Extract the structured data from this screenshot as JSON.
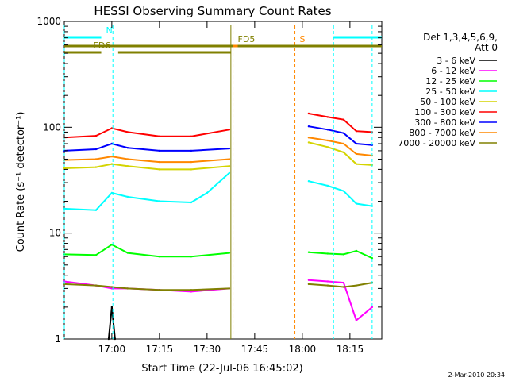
{
  "chart_data": {
    "type": "line",
    "title": "HESSI Observing Summary Count Rates",
    "xlabel": "Start Time (22-Jul-06 16:45:02)",
    "ylabel": "Count Rate (s⁻¹ detector⁻¹)",
    "ylim": [
      1,
      1000
    ],
    "y_scale": "log",
    "xlim": [
      "16:45:02",
      "18:25:02"
    ],
    "x_ticks": [
      "17:00",
      "17:15",
      "17:30",
      "17:45",
      "18:00",
      "18:15"
    ],
    "y_ticks": [
      "1",
      "10",
      "100",
      "1000"
    ],
    "legend_position": "right",
    "legend_title": [
      "Det 1,3,4,5,6,9,",
      "Att 0"
    ],
    "grid": false,
    "data_gaps": [
      [
        "17:38",
        "18:02"
      ]
    ],
    "series": [
      {
        "name": "3 - 6 keV",
        "color": "#000000",
        "x": [
          "16:59",
          "17:00",
          "17:01"
        ],
        "y": [
          1.0,
          2.0,
          1.0
        ]
      },
      {
        "name": "6 - 12 keV",
        "color": "#ff00ff",
        "x": [
          "16:45",
          "16:55",
          "17:00",
          "17:05",
          "17:15",
          "17:25",
          "17:37",
          "18:02",
          "18:08",
          "18:13",
          "18:17",
          "18:22"
        ],
        "y": [
          3.5,
          3.2,
          3.0,
          3.0,
          2.9,
          2.8,
          3.0,
          3.6,
          3.5,
          3.4,
          1.5,
          2.0
        ]
      },
      {
        "name": "12 - 25 keV",
        "color": "#00ff00",
        "x": [
          "16:45",
          "16:55",
          "17:00",
          "17:05",
          "17:15",
          "17:25",
          "17:37",
          "18:02",
          "18:08",
          "18:13",
          "18:17",
          "18:22"
        ],
        "y": [
          6.3,
          6.2,
          7.8,
          6.5,
          6.0,
          6.0,
          6.5,
          6.6,
          6.4,
          6.3,
          6.8,
          5.8
        ]
      },
      {
        "name": "25 - 50 keV",
        "color": "#00ffff",
        "x": [
          "16:45",
          "16:55",
          "17:00",
          "17:05",
          "17:15",
          "17:25",
          "17:30",
          "17:37",
          "18:02",
          "18:08",
          "18:13",
          "18:17",
          "18:22"
        ],
        "y": [
          17.0,
          16.5,
          24.0,
          22.0,
          20.0,
          19.5,
          24.0,
          37.0,
          31.0,
          28.0,
          25.0,
          19.0,
          18.0
        ]
      },
      {
        "name": "50 - 100 keV",
        "color": "#d4d400",
        "x": [
          "16:45",
          "16:55",
          "17:00",
          "17:05",
          "17:15",
          "17:25",
          "17:37",
          "18:02",
          "18:08",
          "18:13",
          "18:17",
          "18:22"
        ],
        "y": [
          41.0,
          42.0,
          45.0,
          43.0,
          40.0,
          40.0,
          43.0,
          72.0,
          65.0,
          58.0,
          45.0,
          44.0
        ]
      },
      {
        "name": "100 - 300 keV",
        "color": "#ff0000",
        "x": [
          "16:45",
          "16:55",
          "17:00",
          "17:05",
          "17:15",
          "17:25",
          "17:37",
          "18:02",
          "18:08",
          "18:13",
          "18:17",
          "18:22"
        ],
        "y": [
          80.0,
          83.0,
          98.0,
          90.0,
          82.0,
          82.0,
          95.0,
          135.0,
          125.0,
          118.0,
          92.0,
          90.0
        ]
      },
      {
        "name": "300 - 800 keV",
        "color": "#0000ff",
        "x": [
          "16:45",
          "16:55",
          "17:00",
          "17:05",
          "17:15",
          "17:25",
          "17:37",
          "18:02",
          "18:08",
          "18:13",
          "18:17",
          "18:22"
        ],
        "y": [
          60.0,
          62.0,
          70.0,
          64.0,
          60.0,
          60.0,
          63.0,
          102.0,
          95.0,
          88.0,
          70.0,
          68.0
        ]
      },
      {
        "name": "800 - 7000 keV",
        "color": "#ff8800",
        "x": [
          "16:45",
          "16:55",
          "17:00",
          "17:05",
          "17:15",
          "17:25",
          "17:37",
          "18:02",
          "18:08",
          "18:13",
          "18:17",
          "18:22"
        ],
        "y": [
          49.0,
          50.0,
          53.0,
          50.0,
          47.0,
          47.0,
          50.0,
          80.0,
          75.0,
          70.0,
          56.0,
          54.0
        ]
      },
      {
        "name": "7000 - 20000 keV",
        "color": "#808000",
        "x": [
          "16:45",
          "16:55",
          "17:00",
          "17:05",
          "17:15",
          "17:25",
          "17:37",
          "18:02",
          "18:08",
          "18:13",
          "18:17",
          "18:22"
        ],
        "y": [
          3.3,
          3.2,
          3.1,
          3.0,
          2.9,
          2.9,
          3.0,
          3.3,
          3.2,
          3.1,
          3.2,
          3.4
        ]
      }
    ],
    "flag_bars": [
      {
        "label": "N",
        "color": "#00ffff",
        "segments": [
          [
            "16:45:02",
            "16:56:40"
          ],
          [
            "18:09:50",
            "18:25:02"
          ]
        ],
        "markers": [
          "16:45:02",
          "17:00:20",
          "18:09:50",
          "18:22:00"
        ]
      },
      {
        "label": "S",
        "color": "#ff8800",
        "segments": [
          [
            "17:38:10",
            "17:57:40"
          ]
        ],
        "markers": [
          "17:38:10",
          "17:57:40"
        ]
      },
      {
        "label": "FD5",
        "color": "#808000",
        "segments": [
          [
            "16:45:02",
            "17:38:10"
          ],
          [
            "17:39:40",
            "18:25:02"
          ]
        ]
      },
      {
        "label": "FD6",
        "color": "#808000",
        "segments": [
          [
            "16:45:02",
            "16:56:40"
          ],
          [
            "17:02:00",
            "17:37:30"
          ]
        ],
        "markers": [
          "17:37:30"
        ]
      }
    ]
  },
  "footer": {
    "date": "2-Mar-2010 20:34"
  }
}
